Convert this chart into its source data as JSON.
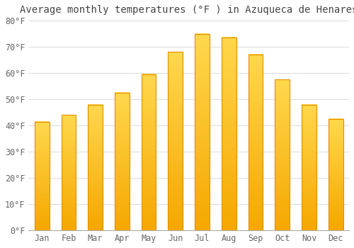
{
  "title": "Average monthly temperatures (°F ) in Azuqueca de Henares",
  "months": [
    "Jan",
    "Feb",
    "Mar",
    "Apr",
    "May",
    "Jun",
    "Jul",
    "Aug",
    "Sep",
    "Oct",
    "Nov",
    "Dec"
  ],
  "values": [
    41.5,
    44.0,
    48.0,
    52.5,
    59.5,
    68.0,
    75.0,
    73.5,
    67.0,
    57.5,
    48.0,
    42.5
  ],
  "bar_color_bottom": "#F5A800",
  "bar_color_top": "#FFD84D",
  "bar_edge_color": "#E09000",
  "ylim": [
    0,
    80
  ],
  "yticks": [
    0,
    10,
    20,
    30,
    40,
    50,
    60,
    70,
    80
  ],
  "ytick_labels": [
    "0°F",
    "10°F",
    "20°F",
    "30°F",
    "40°F",
    "50°F",
    "60°F",
    "70°F",
    "80°F"
  ],
  "background_color": "#FFFFFF",
  "grid_color": "#DDDDDD",
  "title_fontsize": 10,
  "tick_fontsize": 8.5,
  "tick_color": "#666666",
  "bar_width": 0.55
}
